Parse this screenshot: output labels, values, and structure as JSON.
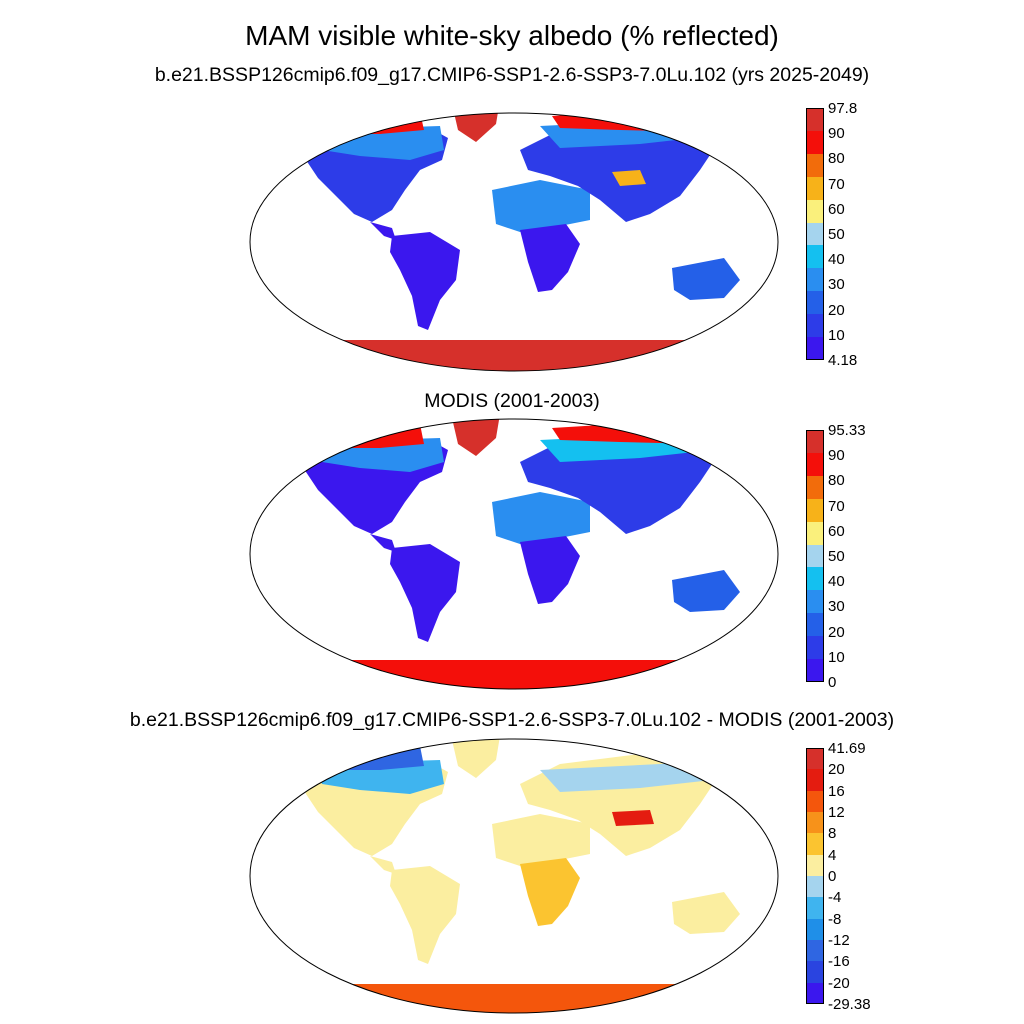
{
  "title": "MAM visible white-sky albedo (% reflected)",
  "panels": [
    {
      "id": "model",
      "subtitle": "b.e21.BSSP126cmip6.f09_g17.CMIP6-SSP1-2.6-SSP3-7.0Lu.102 (yrs 2025-2049)",
      "colorbar": {
        "labels": [
          "97.8",
          "90",
          "80",
          "70",
          "60",
          "50",
          "40",
          "30",
          "20",
          "10",
          "4.18"
        ],
        "colors": [
          "#d6302b",
          "#f40f0a",
          "#f26c0b",
          "#f7b219",
          "#faf07c",
          "#a5d4ee",
          "#14c0f0",
          "#2a8ef0",
          "#2460e8",
          "#2d3ce8",
          "#3b17ee"
        ]
      }
    },
    {
      "id": "modis",
      "subtitle": "MODIS (2001-2003)",
      "colorbar": {
        "labels": [
          "95.33",
          "90",
          "80",
          "70",
          "60",
          "50",
          "40",
          "30",
          "20",
          "10",
          "0"
        ],
        "colors": [
          "#d6302b",
          "#f40f0a",
          "#f26c0b",
          "#f7b219",
          "#faf07c",
          "#a5d4ee",
          "#14c0f0",
          "#2a8ef0",
          "#2460e8",
          "#2d3ce8",
          "#3b17ee"
        ]
      }
    },
    {
      "id": "diff",
      "subtitle": "b.e21.BSSP126cmip6.f09_g17.CMIP6-SSP1-2.6-SSP3-7.0Lu.102 - MODIS (2001-2003)",
      "colorbar": {
        "labels": [
          "41.69",
          "20",
          "16",
          "12",
          "8",
          "4",
          "0",
          "-4",
          "-8",
          "-12",
          "-16",
          "-20",
          "-29.38"
        ],
        "colors": [
          "#d6302b",
          "#e41c10",
          "#f4560c",
          "#f7921a",
          "#fbc430",
          "#fbeea0",
          "#a5d4ee",
          "#3fb4ef",
          "#1f8fe8",
          "#2f66e2",
          "#2a44e0",
          "#3b17ee"
        ]
      }
    }
  ]
}
